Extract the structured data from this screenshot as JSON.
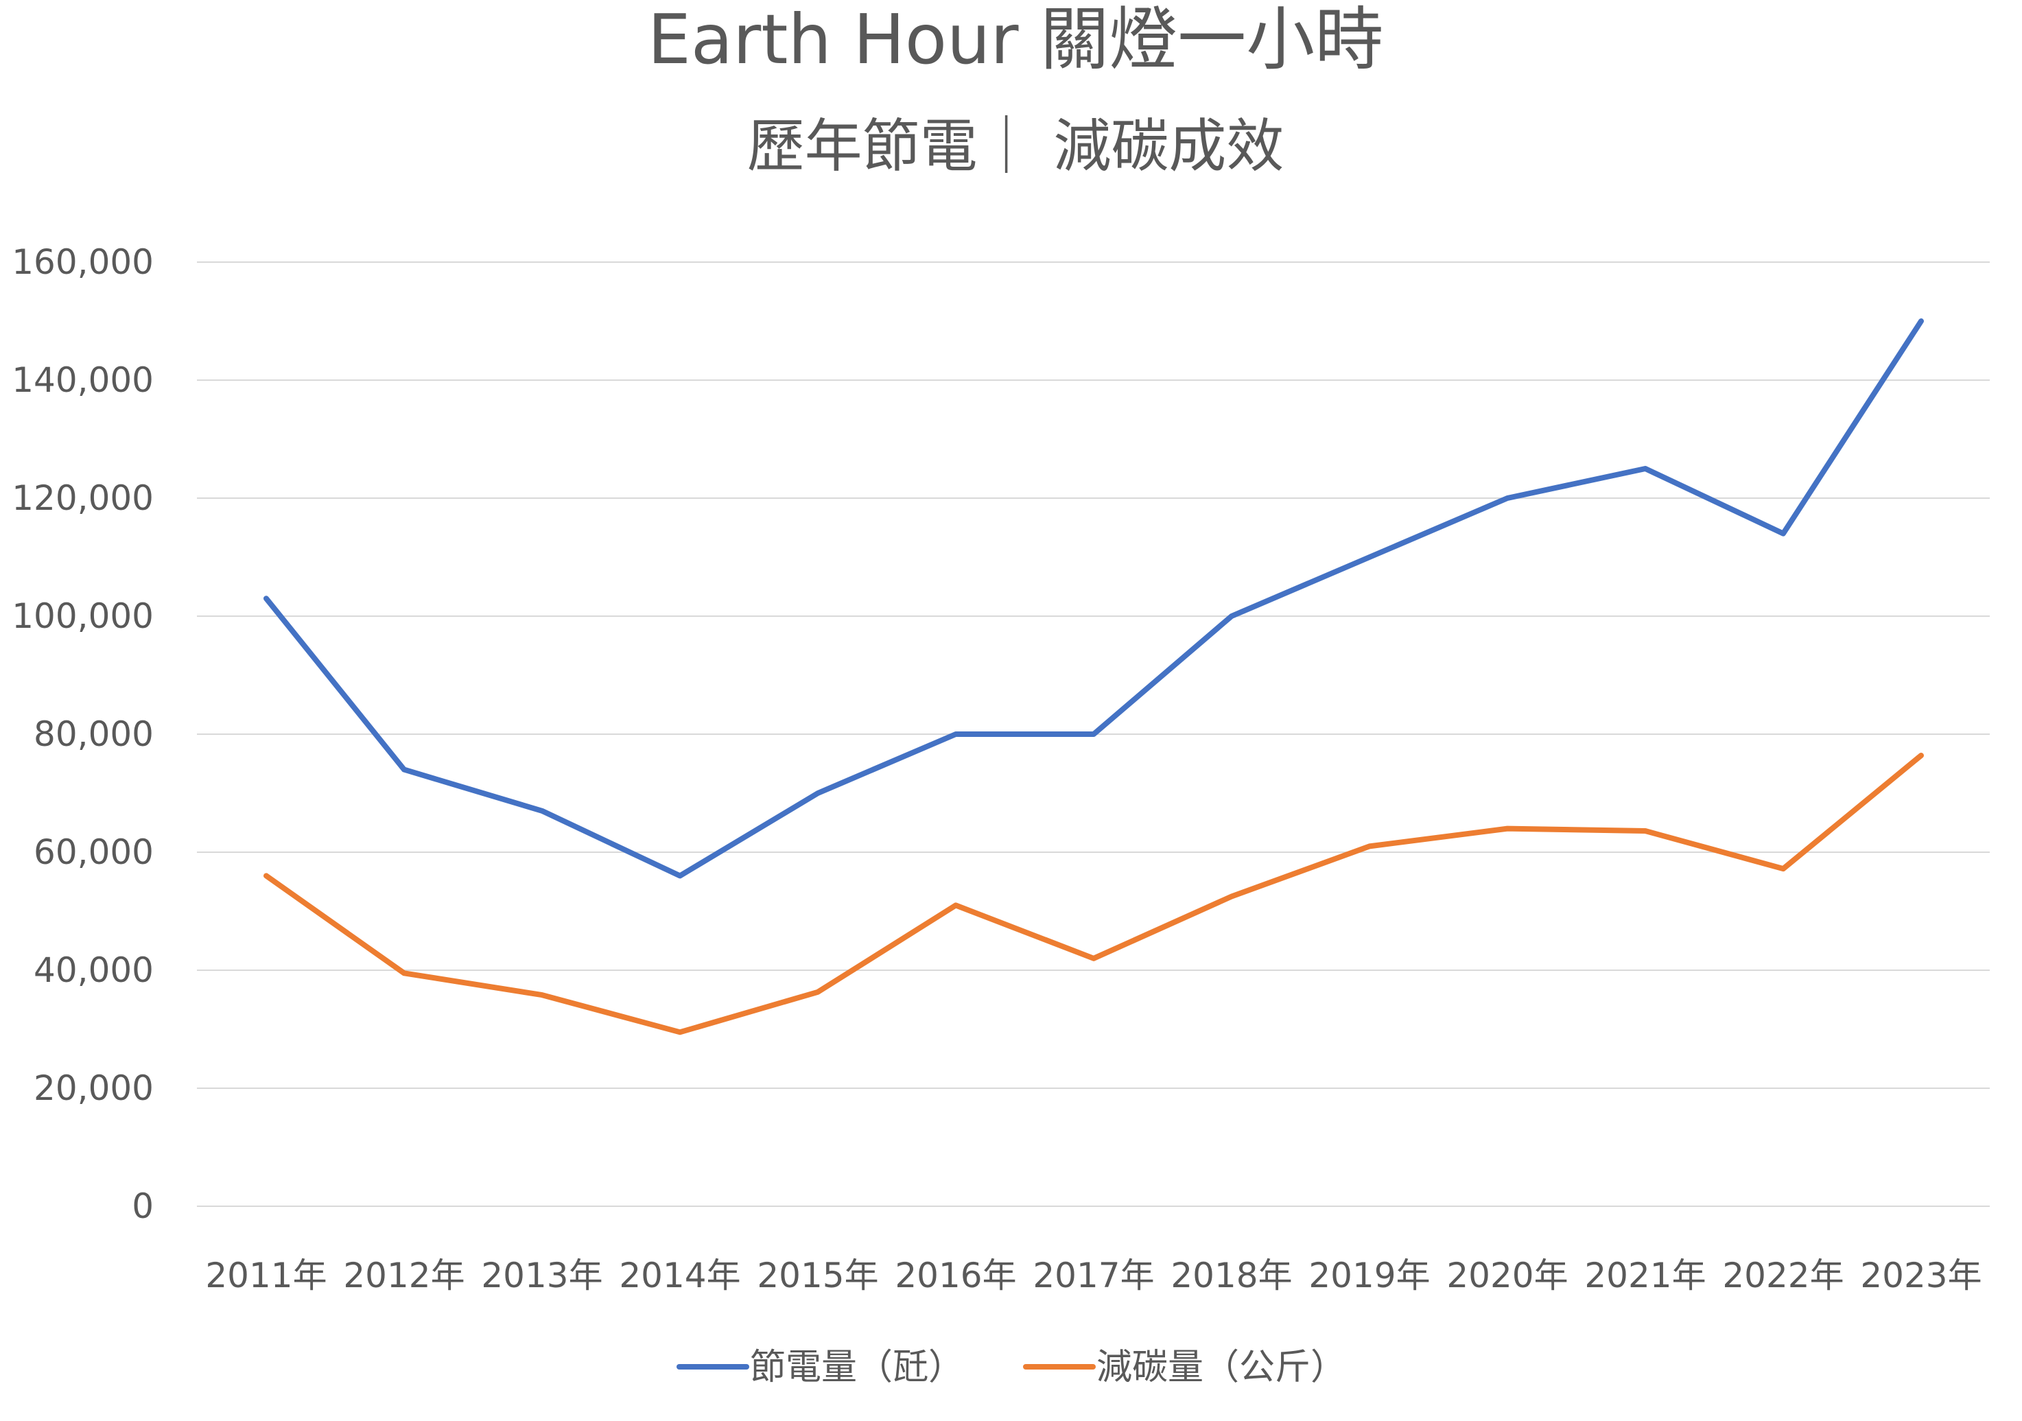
{
  "chart_data": {
    "type": "line",
    "title": "Earth Hour 關燈一小時",
    "subtitle": "歷年節電｜ 減碳成效",
    "xlabel": "",
    "ylabel": "",
    "categories": [
      "2011年",
      "2012年",
      "2013年",
      "2014年",
      "2015年",
      "2016年",
      "2017年",
      "2018年",
      "2019年",
      "2020年",
      "2021年",
      "2022年",
      "2023年"
    ],
    "y_ticks": [
      "0",
      "20,000",
      "40,000",
      "60,000",
      "80,000",
      "100,000",
      "120,000",
      "140,000",
      "160,000"
    ],
    "ylim": [
      0,
      160000
    ],
    "grid": true,
    "legend_position": "bottom",
    "series": [
      {
        "name": "節電量（瓩）",
        "color": "#4472C4",
        "values": [
          103000,
          74000,
          67000,
          56000,
          70000,
          80000,
          80000,
          100000,
          110000,
          120000,
          125000,
          114000,
          150000
        ]
      },
      {
        "name": "減碳量（公斤）",
        "color": "#ED7D31",
        "values": [
          56000,
          39500,
          35800,
          29500,
          36300,
          51000,
          42000,
          52500,
          61000,
          64000,
          63600,
          57200,
          76400
        ]
      }
    ]
  }
}
